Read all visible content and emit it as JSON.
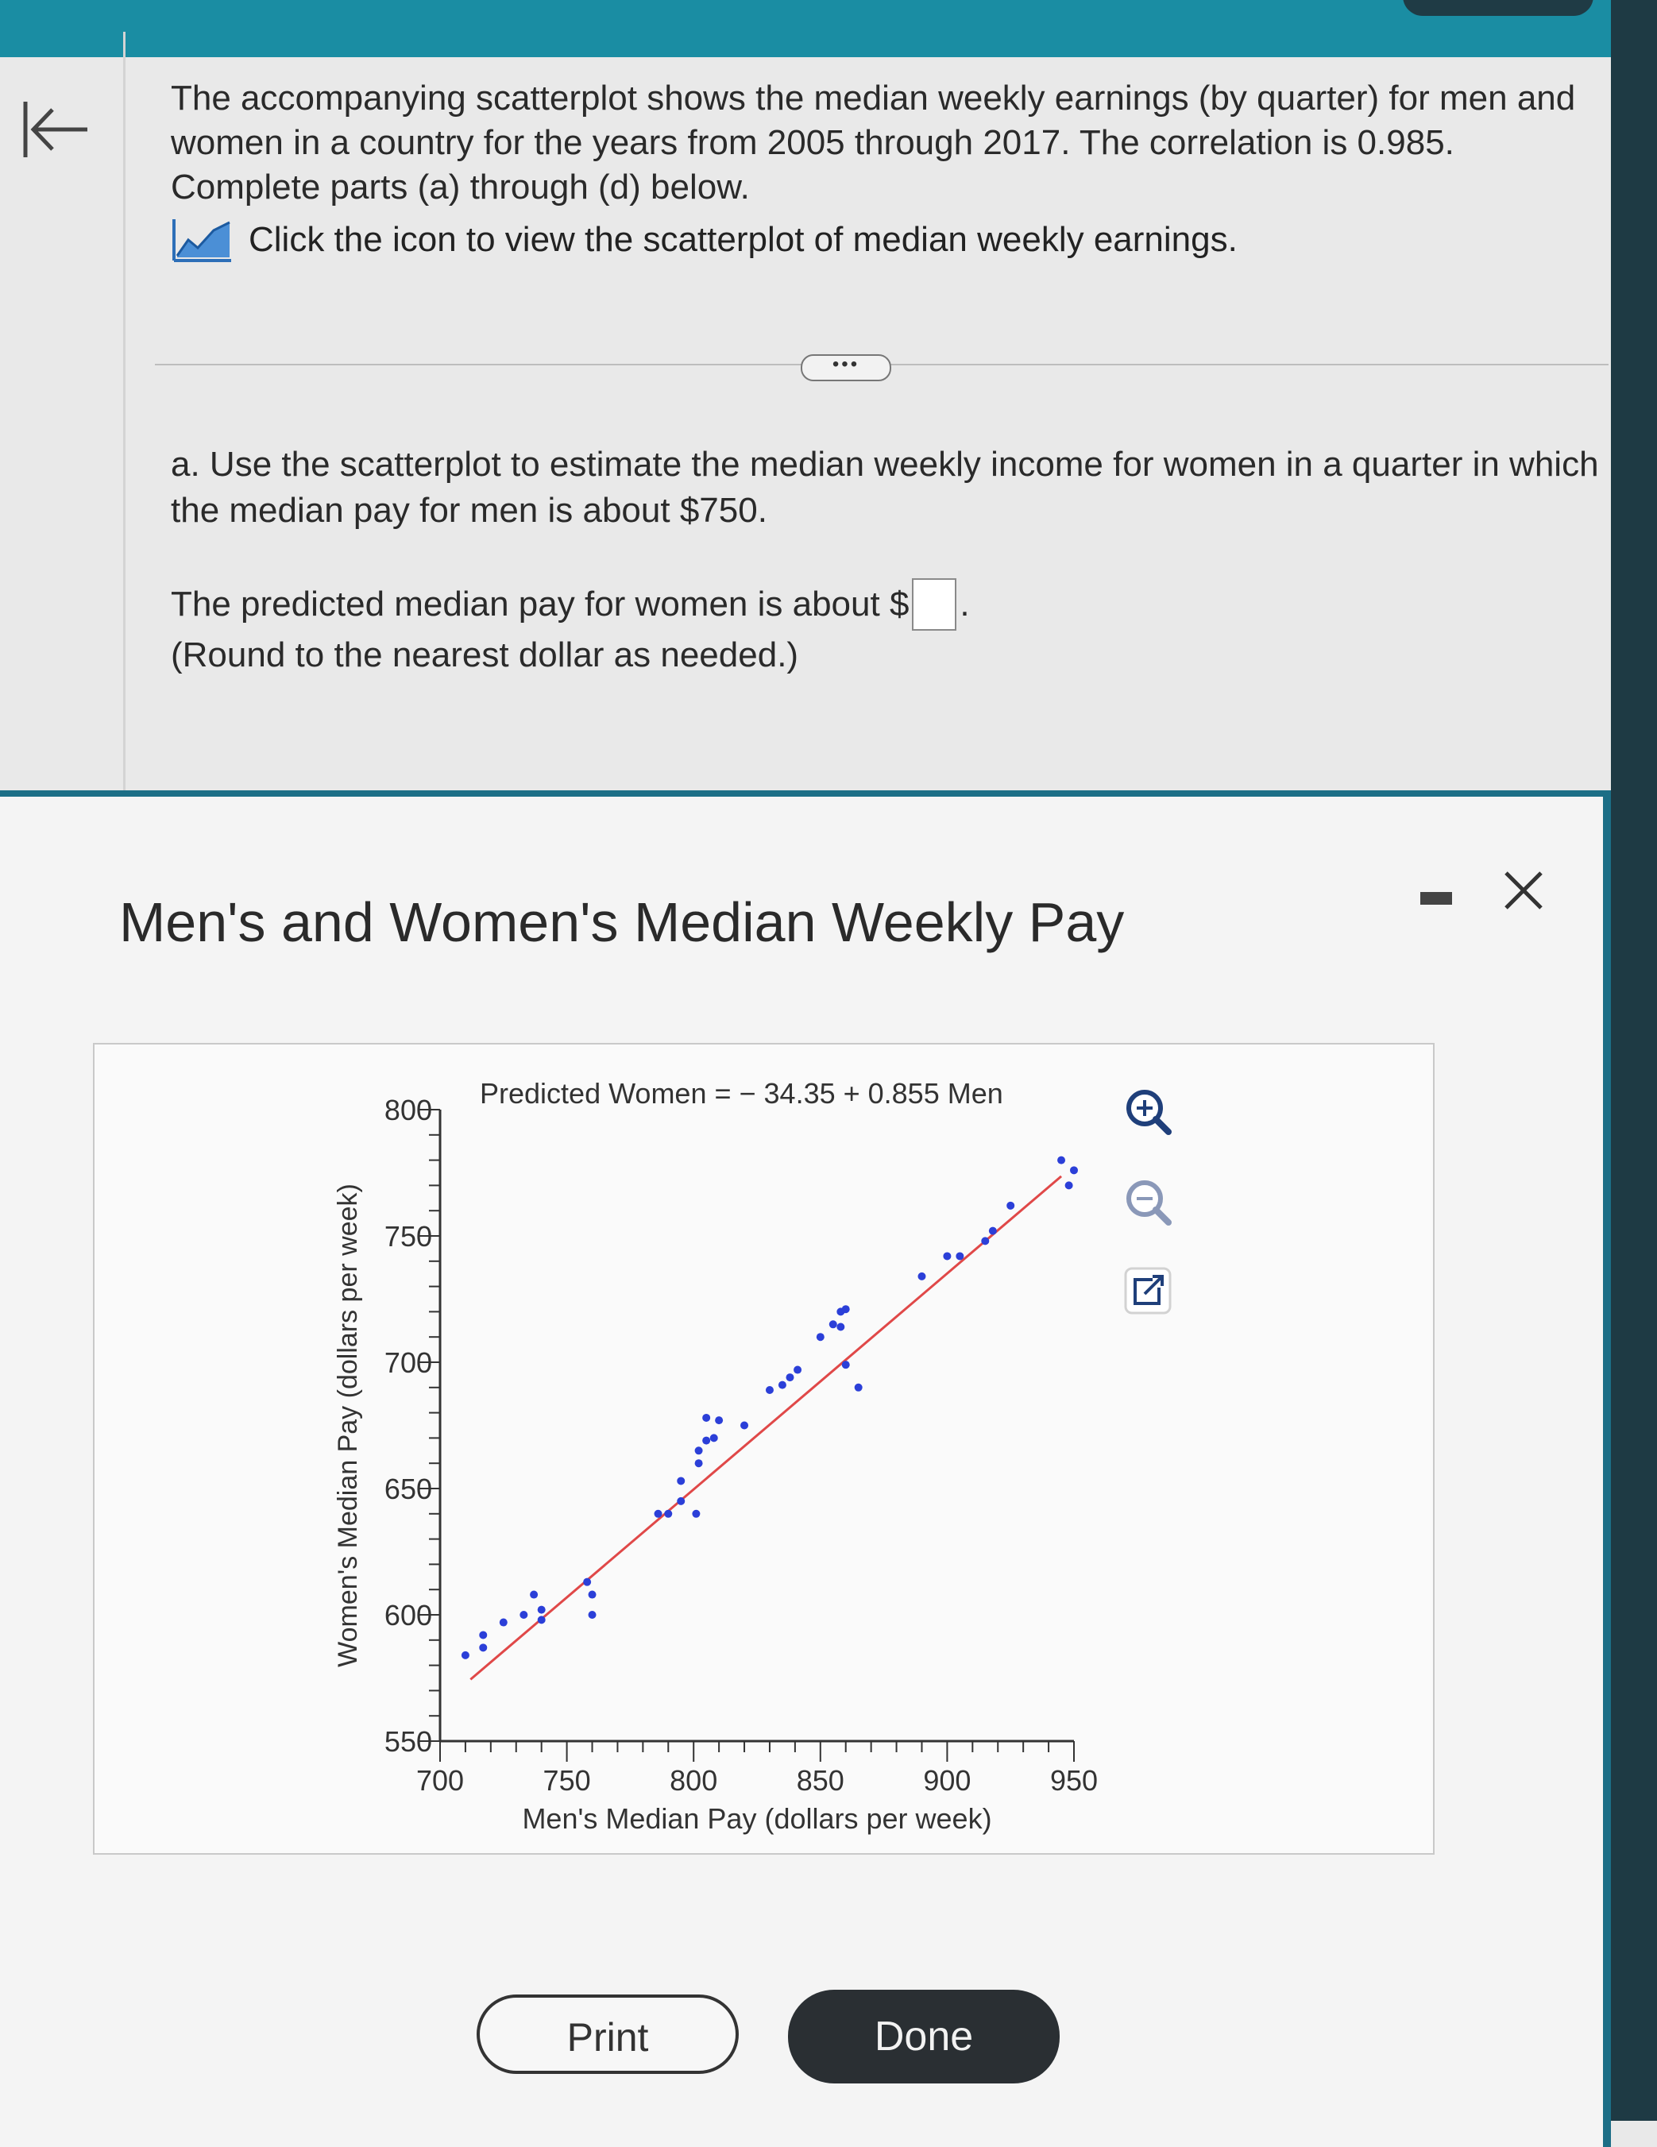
{
  "question": {
    "intro": "The accompanying scatterplot shows the median weekly earnings (by quarter) for men and women in a country for the years from 2005 through 2017. The correlation is 0.985. Complete parts (a) through (d) below.",
    "icon_link_text": "Click the icon to view the scatterplot of median weekly earnings.",
    "more_label": "•••",
    "part_a": "a. Use the scatterplot to estimate the median weekly income for women in a quarter in which the median pay for men is about $750.",
    "answer_prefix": "The predicted median pay for women is about $",
    "answer_value": "",
    "answer_suffix": ".",
    "hint": "(Round to the nearest dollar as needed.)"
  },
  "modal": {
    "title": "Men's and Women's Median Weekly Pay",
    "print_label": "Print",
    "done_label": "Done"
  },
  "chart_data": {
    "type": "scatter",
    "title": "",
    "equation": "Predicted Women  =  − 34.35 + 0.855 Men",
    "xlabel": "Men's Median Pay (dollars per week)",
    "ylabel": "Women's Median Pay (dollars per week)",
    "xlim": [
      700,
      950
    ],
    "ylim": [
      550,
      800
    ],
    "x_ticks": [
      700,
      750,
      800,
      850,
      900,
      950
    ],
    "y_ticks": [
      550,
      600,
      650,
      700,
      750,
      800
    ],
    "grid": false,
    "regression": {
      "intercept": -34.35,
      "slope": 0.855,
      "color": "#e04848"
    },
    "point_color": "#2b3fd8",
    "points": [
      [
        710,
        584
      ],
      [
        717,
        592
      ],
      [
        717,
        587
      ],
      [
        725,
        597
      ],
      [
        733,
        600
      ],
      [
        737,
        608
      ],
      [
        740,
        602
      ],
      [
        740,
        598
      ],
      [
        758,
        613
      ],
      [
        760,
        608
      ],
      [
        760,
        600
      ],
      [
        786,
        640
      ],
      [
        790,
        640
      ],
      [
        795,
        645
      ],
      [
        801,
        640
      ],
      [
        802,
        660
      ],
      [
        795,
        653
      ],
      [
        802,
        665
      ],
      [
        805,
        669
      ],
      [
        805,
        678
      ],
      [
        808,
        670
      ],
      [
        810,
        677
      ],
      [
        820,
        675
      ],
      [
        830,
        689
      ],
      [
        835,
        691
      ],
      [
        838,
        694
      ],
      [
        841,
        697
      ],
      [
        850,
        710
      ],
      [
        855,
        715
      ],
      [
        858,
        714
      ],
      [
        858,
        720
      ],
      [
        860,
        721
      ],
      [
        860,
        699
      ],
      [
        865,
        690
      ],
      [
        890,
        734
      ],
      [
        900,
        742
      ],
      [
        905,
        742
      ],
      [
        915,
        748
      ],
      [
        918,
        752
      ],
      [
        925,
        762
      ],
      [
        945,
        780
      ],
      [
        948,
        770
      ],
      [
        950,
        776
      ]
    ]
  },
  "icons": {
    "back": "first-page-arrow-icon",
    "chart_link": "line-chart-icon",
    "zoom_in": "zoom-in-icon",
    "zoom_out": "zoom-out-icon",
    "popout": "popout-icon",
    "minimize": "minimize-icon",
    "close": "close-icon"
  }
}
